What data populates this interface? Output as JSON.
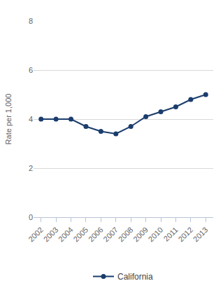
{
  "chart_data": {
    "type": "line",
    "categories": [
      "2002",
      "2003",
      "2004",
      "2005",
      "2006",
      "2007",
      "2008",
      "2009",
      "2010",
      "2011",
      "2012",
      "2013"
    ],
    "series": [
      {
        "name": "California",
        "color": "#1b3d6d",
        "marker": "circle",
        "values": [
          4.0,
          4.0,
          4.0,
          3.7,
          3.5,
          3.4,
          3.7,
          4.1,
          4.3,
          4.5,
          4.8,
          5.0
        ]
      }
    ],
    "y_label": "Rate per 1,000",
    "ylim": [
      0,
      8
    ],
    "yticks": [
      0,
      2,
      4,
      6,
      8
    ],
    "grid": true,
    "legend": "bottom"
  }
}
